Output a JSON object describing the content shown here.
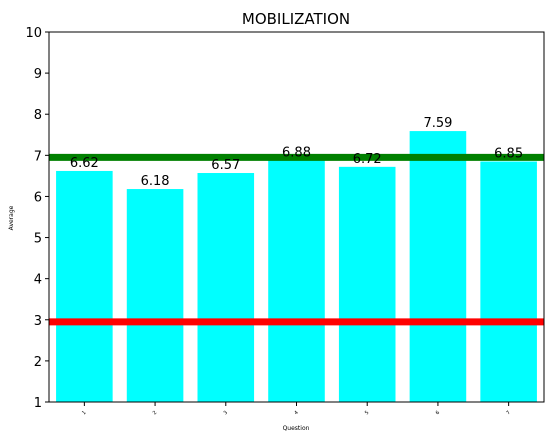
{
  "chart_data": {
    "type": "bar",
    "title": "MOBILIZATION",
    "xlabel": "Question",
    "ylabel": "Average",
    "categories": [
      "1",
      "2",
      "3",
      "4",
      "5",
      "6",
      "7"
    ],
    "values": [
      6.62,
      6.18,
      6.57,
      6.88,
      6.72,
      7.59,
      6.85
    ],
    "value_labels": [
      "6.62",
      "6.18",
      "6.57",
      "6.88",
      "6.72",
      "7.59",
      "6.85"
    ],
    "ylim": [
      1,
      10
    ],
    "yticks": [
      "1",
      "2",
      "3",
      "4",
      "5",
      "6",
      "7",
      "8",
      "9",
      "10"
    ],
    "bar_color": "#00ffff",
    "reference_lines": [
      {
        "y": 6.95,
        "color": "#008000"
      },
      {
        "y": 2.95,
        "color": "#ff0000"
      }
    ],
    "grid": false,
    "legend": "none"
  }
}
